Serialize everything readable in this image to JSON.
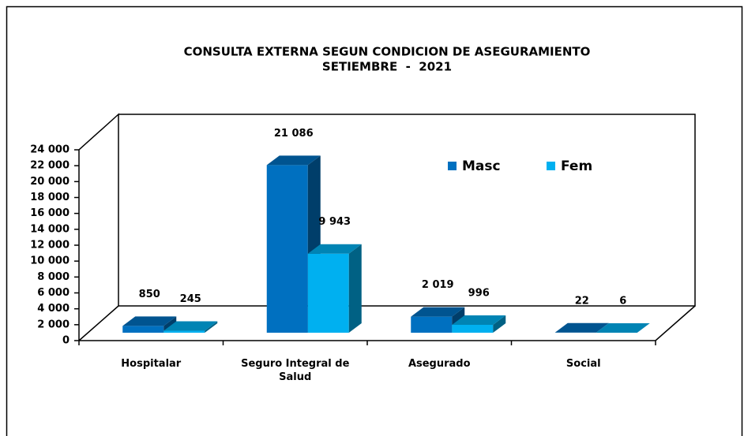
{
  "chart_data": {
    "type": "bar3d",
    "title": "CONSULTA EXTERNA SEGUN CONDICION DE ASEGURAMIENTO",
    "subtitle": "SETIEMBRE  -  2021",
    "categories": [
      "Hospitalar",
      "Seguro Integral de Salud",
      "Asegurado",
      "Social"
    ],
    "series": [
      {
        "name": "Masc",
        "color": "#0070c0",
        "values": [
          850,
          21086,
          2019,
          22
        ],
        "value_labels": [
          "850",
          "21 086",
          "2 019",
          "22"
        ]
      },
      {
        "name": "Fem",
        "color": "#00b0f0",
        "values": [
          245,
          9943,
          996,
          6
        ],
        "value_labels": [
          "245",
          "9 943",
          "996",
          "6"
        ]
      }
    ],
    "ylim": [
      0,
      24000
    ],
    "yticks": [
      0,
      {
        "value": 2000,
        "label": "2 000"
      },
      {
        "value": 4000,
        "label": "4 000"
      },
      {
        "value": 6000,
        "label": "6 000"
      },
      {
        "value": 8000,
        "label": "8 000"
      },
      {
        "value": 10000,
        "label": "10 000"
      },
      {
        "value": 12000,
        "label": "12 000"
      },
      {
        "value": 14000,
        "label": "14 000"
      },
      {
        "value": 16000,
        "label": "16 000"
      },
      {
        "value": 18000,
        "label": "18 000"
      },
      {
        "value": 20000,
        "label": "20 000"
      },
      {
        "value": 22000,
        "label": "22 000"
      },
      {
        "value": 24000,
        "label": "24 000"
      }
    ],
    "legend": "top-right",
    "grid": false
  }
}
